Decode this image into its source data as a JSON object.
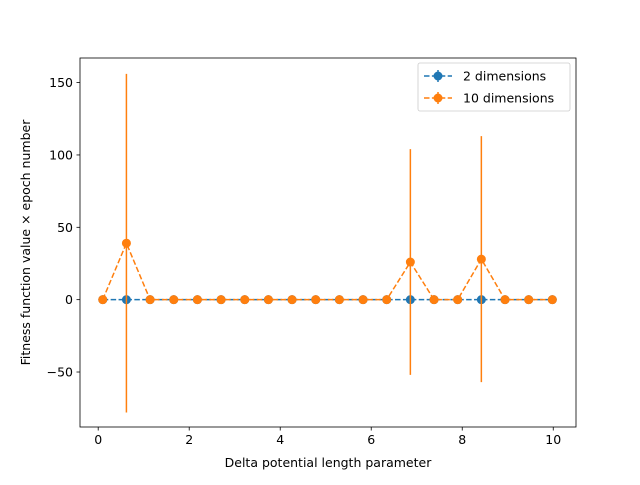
{
  "colors": {
    "series_0": "#1f77b4",
    "series_1": "#ff7f0e"
  },
  "chart_data": {
    "type": "line",
    "title": "",
    "xlabel": "Delta potential length parameter",
    "ylabel": "Fitness function value × epoch number",
    "xlim": [
      -0.4,
      10.5
    ],
    "ylim": [
      -88,
      167
    ],
    "xticks": [
      0,
      2,
      4,
      6,
      8,
      10
    ],
    "yticks": [
      -50,
      0,
      50,
      100,
      150
    ],
    "grid": false,
    "legend_position": "upper right",
    "marker": "circle",
    "line_style": "dashed",
    "error_bars": "vertical",
    "x": [
      0.1,
      0.62,
      1.14,
      1.66,
      2.18,
      2.7,
      3.22,
      3.74,
      4.26,
      4.78,
      5.3,
      5.82,
      6.34,
      6.86,
      7.38,
      7.9,
      8.42,
      8.94,
      9.46,
      9.98
    ],
    "series": [
      {
        "name": "2 dimensions",
        "color": "#1f77b4",
        "values": [
          0,
          0,
          0,
          0,
          0,
          0,
          0,
          0,
          0,
          0,
          0,
          0,
          0,
          0,
          0,
          0,
          0,
          0,
          0,
          0
        ],
        "errors": [
          0,
          0,
          0,
          0,
          0,
          0,
          0,
          0,
          0,
          0,
          0,
          0,
          0,
          0,
          0,
          0,
          0,
          0,
          0,
          0
        ]
      },
      {
        "name": "10 dimensions",
        "color": "#ff7f0e",
        "values": [
          0,
          39,
          0,
          0,
          0,
          0,
          0,
          0,
          0,
          0,
          0,
          0,
          0,
          26,
          0,
          0,
          28,
          0,
          0,
          0
        ],
        "errors": [
          0,
          117,
          0,
          0,
          0,
          0,
          0,
          0,
          0,
          0,
          0,
          0,
          0,
          78,
          0,
          0,
          85,
          0,
          0,
          0
        ]
      }
    ]
  }
}
